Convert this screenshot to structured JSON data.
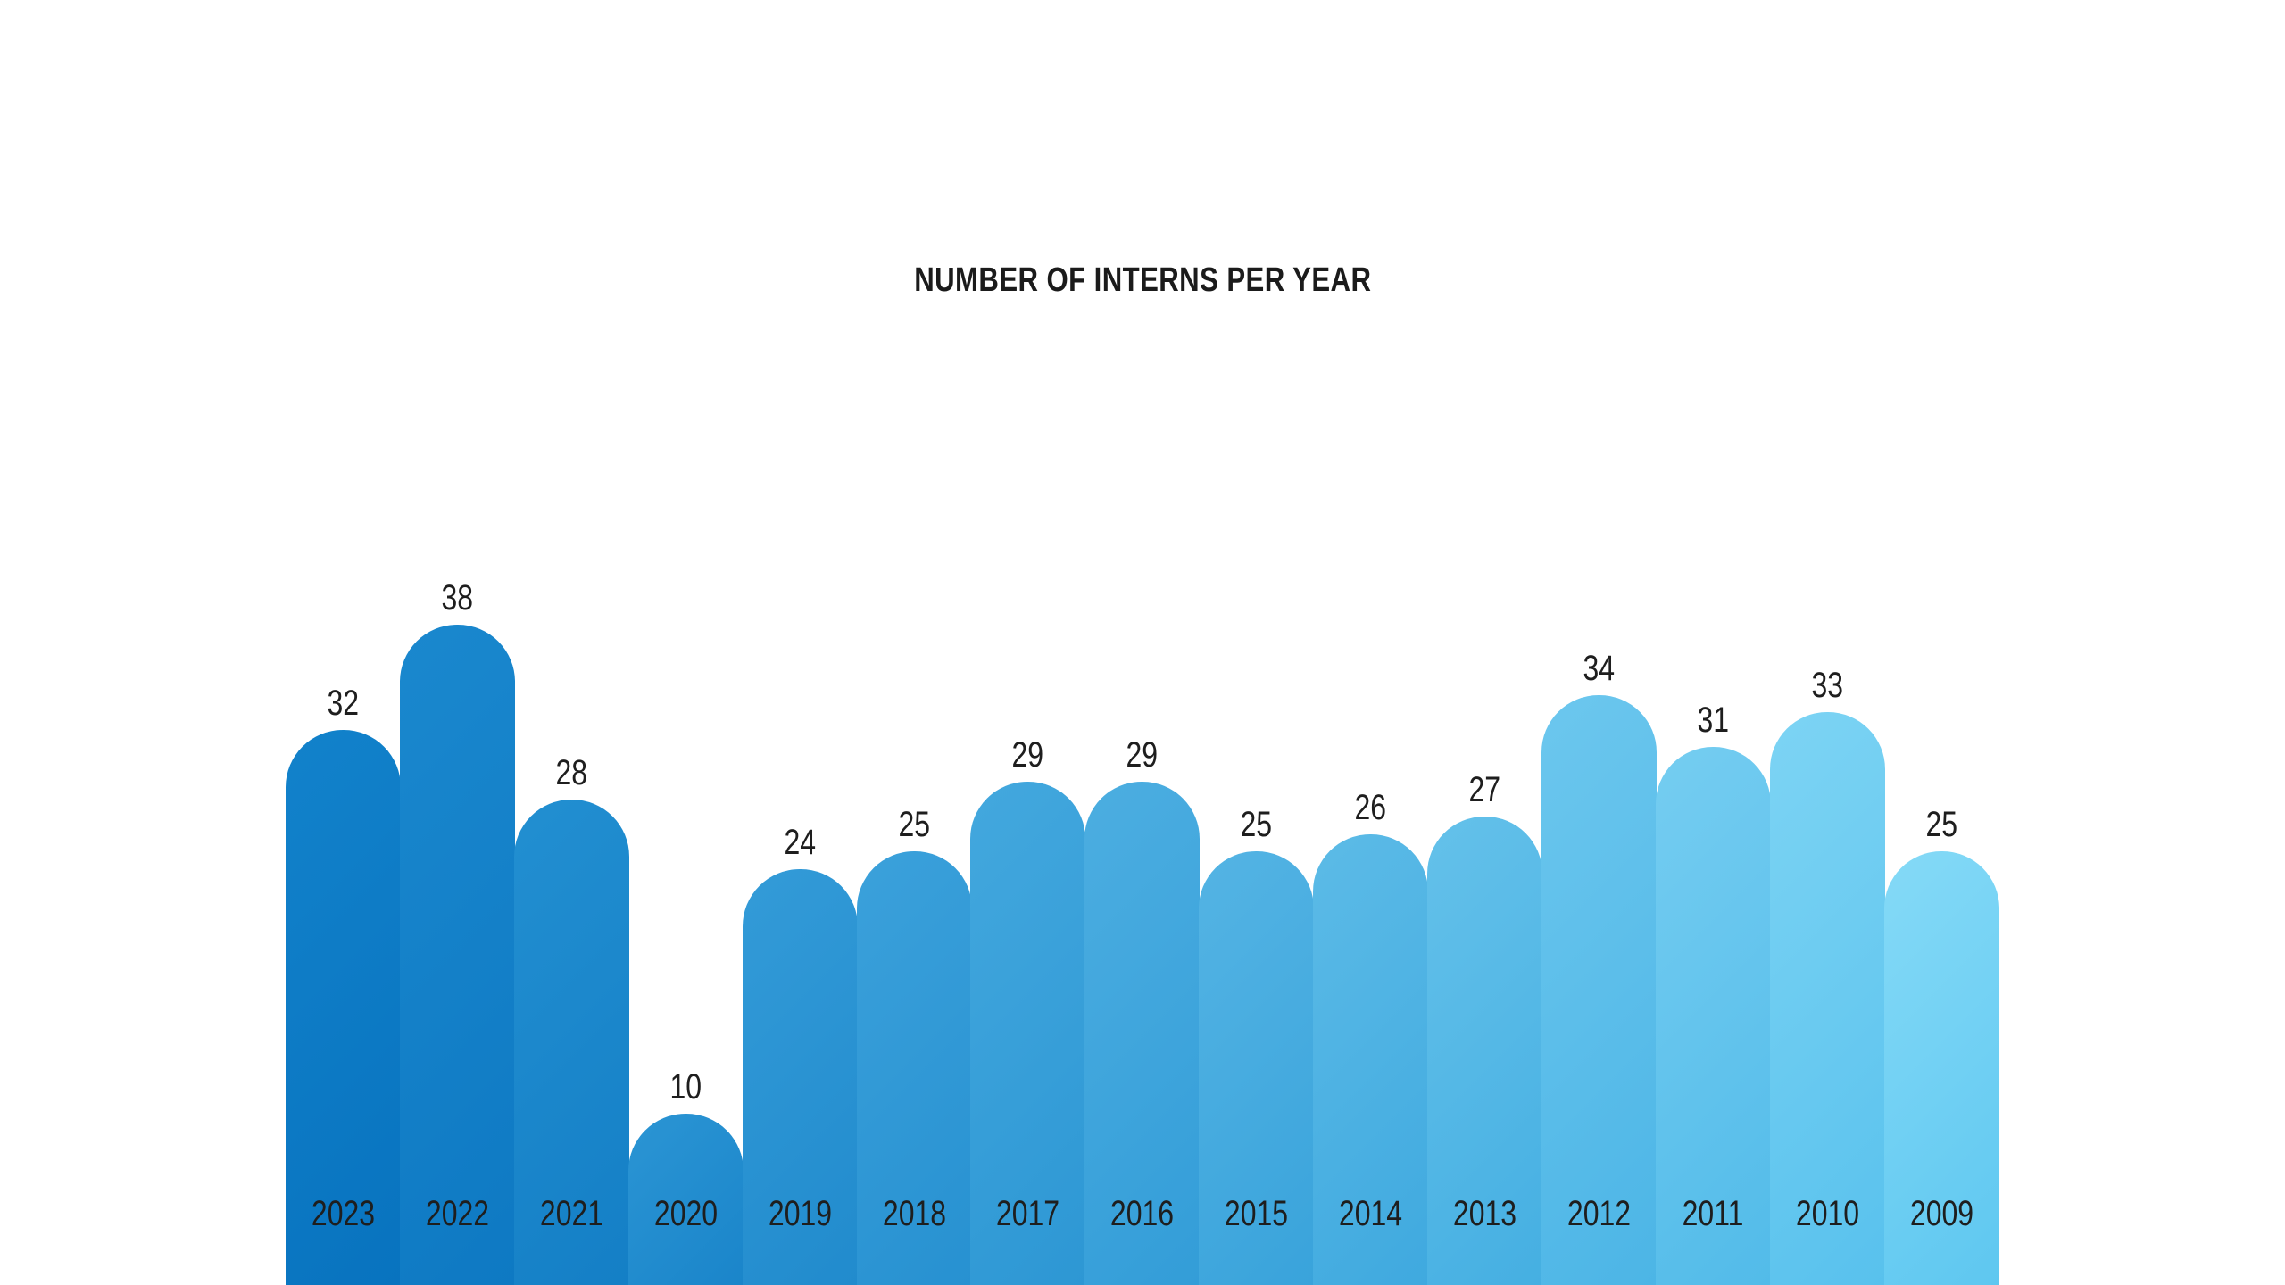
{
  "title": "NUMBER OF INTERNS PER YEAR",
  "chart_data": {
    "type": "bar",
    "title": "NUMBER OF INTERNS PER YEAR",
    "categories": [
      "2023",
      "2022",
      "2021",
      "2020",
      "2019",
      "2018",
      "2017",
      "2016",
      "2015",
      "2014",
      "2013",
      "2012",
      "2011",
      "2010",
      "2009"
    ],
    "values": [
      32,
      38,
      28,
      10,
      24,
      25,
      29,
      29,
      25,
      26,
      27,
      34,
      31,
      33,
      25
    ],
    "xlabel": "",
    "ylabel": "",
    "ylim": [
      0,
      40
    ],
    "grid": false,
    "legend": false,
    "orientation": "vertical",
    "bar_style": "rounded-top-pill, contiguous columns reaching bottom edge",
    "value_label_position": "above each bar",
    "category_label_position": "inside each bar near bottom",
    "colors": {
      "background": "#ffffff",
      "title_text": "#1b1b1b",
      "label_text": "#1e1e1e",
      "first_bar_light": "#1282cb",
      "first_bar_dark": "#0873bf",
      "last_bar_light": "#85daf7",
      "last_bar_dark": "#5ec7f0"
    }
  }
}
